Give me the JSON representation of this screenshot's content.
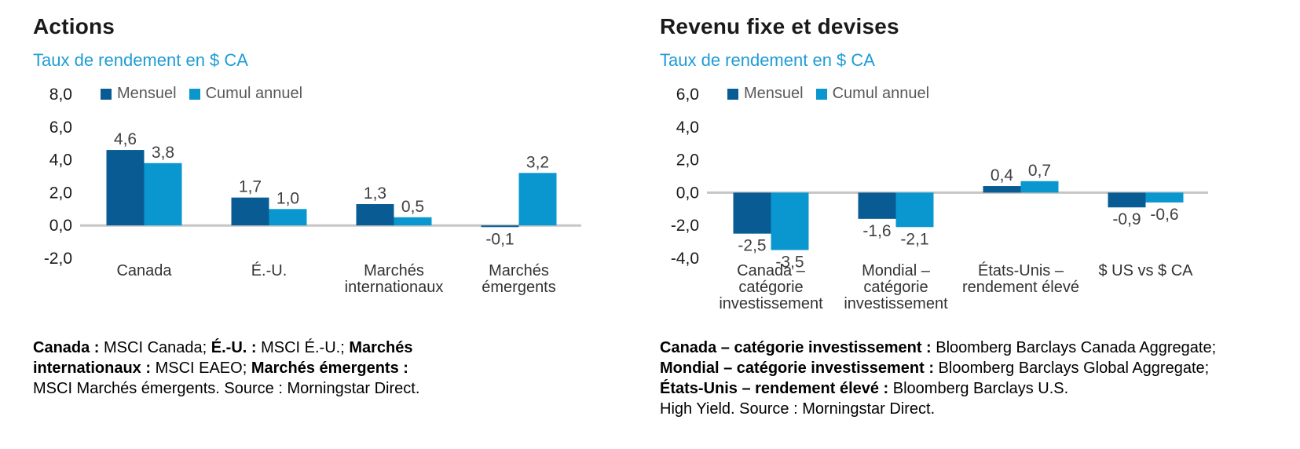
{
  "colors": {
    "mensuel": "#095C93",
    "cumul_annuel": "#0A97CF",
    "subtitle_blue": "#1E9CD6",
    "axis_line": "#C6C6C6",
    "tick_text": "#1a1a1a",
    "value_label_text": "#404040",
    "legend_text": "#595959"
  },
  "chart_data": [
    {
      "type": "bar",
      "title": "Actions",
      "subtitle": "Taux de rendement en $ CA",
      "legend": [
        {
          "name": "Mensuel",
          "color": "#095C93"
        },
        {
          "name": "Cumul annuel",
          "color": "#0A97CF"
        }
      ],
      "legend_position": "top-left",
      "grid": false,
      "ylim": [
        -2,
        8
      ],
      "yticks": [
        {
          "v": 8,
          "label": "8,0"
        },
        {
          "v": 6,
          "label": "6,0"
        },
        {
          "v": 4,
          "label": "4,0"
        },
        {
          "v": 2,
          "label": "2,0"
        },
        {
          "v": 0,
          "label": "0,0"
        },
        {
          "v": -2,
          "label": "-2,0"
        }
      ],
      "categories": [
        [
          "Canada"
        ],
        [
          "É.-U."
        ],
        [
          "Marchés",
          "internationaux"
        ],
        [
          "Marchés",
          "émergents"
        ]
      ],
      "series": [
        {
          "name": "Mensuel",
          "color": "#095C93",
          "values": [
            4.6,
            1.7,
            1.3,
            -0.1
          ],
          "labels": [
            "4,6",
            "1,7",
            "1,3",
            "-0,1"
          ]
        },
        {
          "name": "Cumul annuel",
          "color": "#0A97CF",
          "values": [
            3.8,
            1.0,
            0.5,
            3.2
          ],
          "labels": [
            "3,8",
            "1,0",
            "0,5",
            "3,2"
          ]
        }
      ],
      "footnote": [
        [
          {
            "t": "Canada :",
            "b": true
          },
          {
            "t": " MSCI Canada; ",
            "b": false
          },
          {
            "t": "É.-U. :",
            "b": true
          },
          {
            "t": " MSCI É.-U.; ",
            "b": false
          },
          {
            "t": "Marchés",
            "b": true
          }
        ],
        [
          {
            "t": "internationaux :",
            "b": true
          },
          {
            "t": " MSCI EAEO; ",
            "b": false
          },
          {
            "t": "Marchés émergents :",
            "b": true
          }
        ],
        [
          {
            "t": "MSCI Marchés émergents. Source : Morningstar Direct.",
            "b": false
          }
        ]
      ]
    },
    {
      "type": "bar",
      "title": "Revenu fixe et devises",
      "subtitle": "Taux de rendement en $ CA",
      "legend": [
        {
          "name": "Mensuel",
          "color": "#095C93"
        },
        {
          "name": "Cumul annuel",
          "color": "#0A97CF"
        }
      ],
      "legend_position": "top-left",
      "grid": false,
      "ylim": [
        -4,
        6
      ],
      "yticks": [
        {
          "v": 6,
          "label": "6,0"
        },
        {
          "v": 4,
          "label": "4,0"
        },
        {
          "v": 2,
          "label": "2,0"
        },
        {
          "v": 0,
          "label": "0,0"
        },
        {
          "v": -2,
          "label": "-2,0"
        },
        {
          "v": -4,
          "label": "-4,0"
        }
      ],
      "categories": [
        [
          "Canada –",
          "catégorie",
          "investissement"
        ],
        [
          "Mondial –",
          "catégorie",
          "investissement"
        ],
        [
          "États-Unis –",
          "rendement élevé"
        ],
        [
          "$ US vs $ CA"
        ]
      ],
      "series": [
        {
          "name": "Mensuel",
          "color": "#095C93",
          "values": [
            -2.5,
            -1.6,
            0.4,
            -0.9
          ],
          "labels": [
            "-2,5",
            "-1,6",
            "0,4",
            "-0,9"
          ]
        },
        {
          "name": "Cumul annuel",
          "color": "#0A97CF",
          "values": [
            -3.5,
            -2.1,
            0.7,
            -0.6
          ],
          "labels": [
            "-3,5",
            "-2,1",
            "0,7",
            "-0,6"
          ]
        }
      ],
      "footnote": [
        [
          {
            "t": "Canada – catégorie investissement :",
            "b": true
          },
          {
            "t": " Bloomberg Barclays Canada Aggregate;",
            "b": false
          }
        ],
        [
          {
            "t": "Mondial – catégorie investissement :",
            "b": true
          },
          {
            "t": " Bloomberg Barclays Global Aggregate;",
            "b": false
          }
        ],
        [
          {
            "t": "États-Unis – rendement élevé :",
            "b": true
          },
          {
            "t": " Bloomberg Barclays U.S.",
            "b": false
          }
        ],
        [
          {
            "t": "High Yield. Source : Morningstar Direct.",
            "b": false
          }
        ]
      ]
    }
  ]
}
